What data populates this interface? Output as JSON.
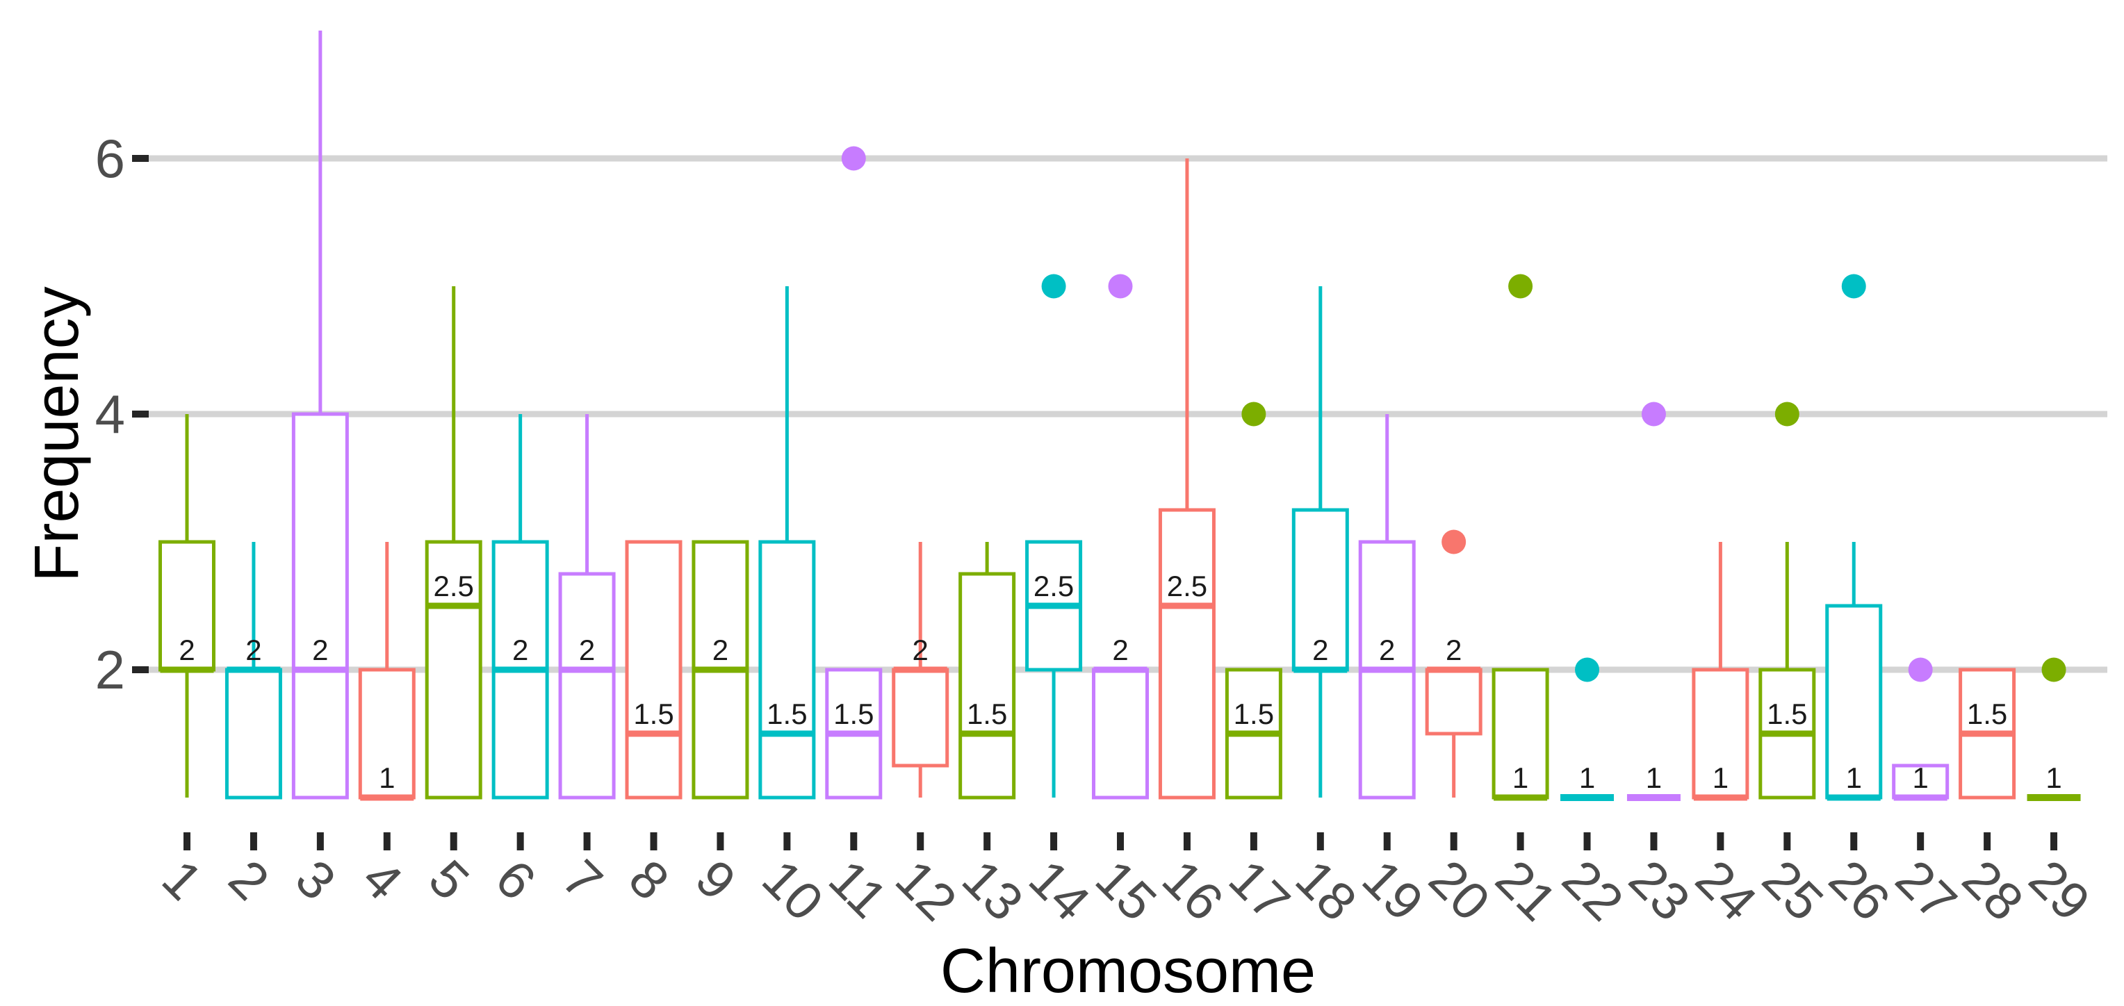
{
  "chart_data": {
    "type": "boxplot",
    "title": "",
    "xlabel": "Chromosome",
    "ylabel": "Frequency",
    "y_ticks": [
      2,
      4,
      6
    ],
    "ylim": [
      0.8,
      7.2
    ],
    "grid": "horizontal-major-only",
    "legend": "none",
    "categories": [
      "1",
      "2",
      "3",
      "4",
      "5",
      "6",
      "7",
      "8",
      "9",
      "10",
      "11",
      "12",
      "13",
      "14",
      "15",
      "16",
      "17",
      "18",
      "19",
      "20",
      "21",
      "22",
      "23",
      "24",
      "25",
      "26",
      "27",
      "28",
      "29"
    ],
    "colors": {
      "green": "#7CAE00",
      "teal": "#00BFC4",
      "purple": "#C77CFF",
      "red": "#F8766D",
      "gridline": "#d4d4d4",
      "tick_mark": "#262626",
      "tick_label": "#4d4d4d",
      "axis_title": "#000000",
      "median_label": "#1a1a1a",
      "box_fill": "#ffffff"
    },
    "palette_cycle": [
      "#7CAE00",
      "#00BFC4",
      "#C77CFF",
      "#F8766D"
    ],
    "boxes": [
      {
        "category": "1",
        "color": "#7CAE00",
        "min": 1,
        "q1": 2,
        "median": 2,
        "q3": 3,
        "max": 4,
        "median_label": "2",
        "outliers": []
      },
      {
        "category": "2",
        "color": "#00BFC4",
        "min": 1,
        "q1": 1,
        "median": 2,
        "q3": 2,
        "max": 3,
        "median_label": "2",
        "outliers": []
      },
      {
        "category": "3",
        "color": "#C77CFF",
        "min": 1,
        "q1": 1,
        "median": 2,
        "q3": 4,
        "max": 7,
        "median_label": "2",
        "outliers": []
      },
      {
        "category": "4",
        "color": "#F8766D",
        "min": 1,
        "q1": 1,
        "median": 1,
        "q3": 2,
        "max": 3,
        "median_label": "1",
        "outliers": []
      },
      {
        "category": "5",
        "color": "#7CAE00",
        "min": 1,
        "q1": 1,
        "median": 2.5,
        "q3": 3,
        "max": 5,
        "median_label": "2.5",
        "outliers": []
      },
      {
        "category": "6",
        "color": "#00BFC4",
        "min": 1,
        "q1": 1,
        "median": 2,
        "q3": 3,
        "max": 4,
        "median_label": "2",
        "outliers": []
      },
      {
        "category": "7",
        "color": "#C77CFF",
        "min": 1,
        "q1": 1,
        "median": 2,
        "q3": 2.75,
        "max": 4,
        "median_label": "2",
        "outliers": []
      },
      {
        "category": "8",
        "color": "#F8766D",
        "min": 1,
        "q1": 1,
        "median": 1.5,
        "q3": 3,
        "max": 3,
        "median_label": "1.5",
        "outliers": []
      },
      {
        "category": "9",
        "color": "#7CAE00",
        "min": 1,
        "q1": 1,
        "median": 2,
        "q3": 3,
        "max": 3,
        "median_label": "2",
        "outliers": []
      },
      {
        "category": "10",
        "color": "#00BFC4",
        "min": 1,
        "q1": 1,
        "median": 1.5,
        "q3": 3,
        "max": 5,
        "median_label": "1.5",
        "outliers": []
      },
      {
        "category": "11",
        "color": "#C77CFF",
        "min": 1,
        "q1": 1,
        "median": 1.5,
        "q3": 2,
        "max": 2,
        "median_label": "1.5",
        "outliers": [
          6
        ]
      },
      {
        "category": "12",
        "color": "#F8766D",
        "min": 1,
        "q1": 1.25,
        "median": 2,
        "q3": 2,
        "max": 3,
        "median_label": "2",
        "outliers": []
      },
      {
        "category": "13",
        "color": "#7CAE00",
        "min": 1,
        "q1": 1,
        "median": 1.5,
        "q3": 2.75,
        "max": 3,
        "median_label": "1.5",
        "outliers": []
      },
      {
        "category": "14",
        "color": "#00BFC4",
        "min": 1,
        "q1": 2,
        "median": 2.5,
        "q3": 3,
        "max": 3,
        "median_label": "2.5",
        "outliers": [
          5
        ]
      },
      {
        "category": "15",
        "color": "#C77CFF",
        "min": 1,
        "q1": 1,
        "median": 2,
        "q3": 2,
        "max": 2,
        "median_label": "2",
        "outliers": [
          5
        ]
      },
      {
        "category": "16",
        "color": "#F8766D",
        "min": 1,
        "q1": 1,
        "median": 2.5,
        "q3": 3.25,
        "max": 6,
        "median_label": "2.5",
        "outliers": []
      },
      {
        "category": "17",
        "color": "#7CAE00",
        "min": 1,
        "q1": 1,
        "median": 1.5,
        "q3": 2,
        "max": 2,
        "median_label": "1.5",
        "outliers": [
          4
        ]
      },
      {
        "category": "18",
        "color": "#00BFC4",
        "min": 1,
        "q1": 2,
        "median": 2,
        "q3": 3.25,
        "max": 5,
        "median_label": "2",
        "outliers": []
      },
      {
        "category": "19",
        "color": "#C77CFF",
        "min": 1,
        "q1": 1,
        "median": 2,
        "q3": 3,
        "max": 4,
        "median_label": "2",
        "outliers": []
      },
      {
        "category": "20",
        "color": "#F8766D",
        "min": 1,
        "q1": 1.5,
        "median": 2,
        "q3": 2,
        "max": 2,
        "median_label": "2",
        "outliers": [
          3
        ]
      },
      {
        "category": "21",
        "color": "#7CAE00",
        "min": 1,
        "q1": 1,
        "median": 1,
        "q3": 2,
        "max": 2,
        "median_label": "1",
        "outliers": [
          5
        ]
      },
      {
        "category": "22",
        "color": "#00BFC4",
        "min": 1,
        "q1": 1,
        "median": 1,
        "q3": 1,
        "max": 1,
        "median_label": "1",
        "outliers": [
          2
        ]
      },
      {
        "category": "23",
        "color": "#C77CFF",
        "min": 1,
        "q1": 1,
        "median": 1,
        "q3": 1,
        "max": 1,
        "median_label": "1",
        "outliers": [
          4
        ]
      },
      {
        "category": "24",
        "color": "#F8766D",
        "min": 1,
        "q1": 1,
        "median": 1,
        "q3": 2,
        "max": 3,
        "median_label": "1",
        "outliers": []
      },
      {
        "category": "25",
        "color": "#7CAE00",
        "min": 1,
        "q1": 1,
        "median": 1.5,
        "q3": 2,
        "max": 3,
        "median_label": "1.5",
        "outliers": [
          4
        ]
      },
      {
        "category": "26",
        "color": "#00BFC4",
        "min": 1,
        "q1": 1,
        "median": 1,
        "q3": 2.5,
        "max": 3,
        "median_label": "1",
        "outliers": [
          5
        ]
      },
      {
        "category": "27",
        "color": "#C77CFF",
        "min": 1,
        "q1": 1,
        "median": 1,
        "q3": 1.25,
        "max": 1.25,
        "median_label": "1",
        "outliers": [
          2
        ]
      },
      {
        "category": "28",
        "color": "#F8766D",
        "min": 1,
        "q1": 1,
        "median": 1.5,
        "q3": 2,
        "max": 2,
        "median_label": "1.5",
        "outliers": []
      },
      {
        "category": "29",
        "color": "#7CAE00",
        "min": 1,
        "q1": 1,
        "median": 1,
        "q3": 1,
        "max": 1,
        "median_label": "1",
        "outliers": [
          2
        ]
      }
    ]
  }
}
